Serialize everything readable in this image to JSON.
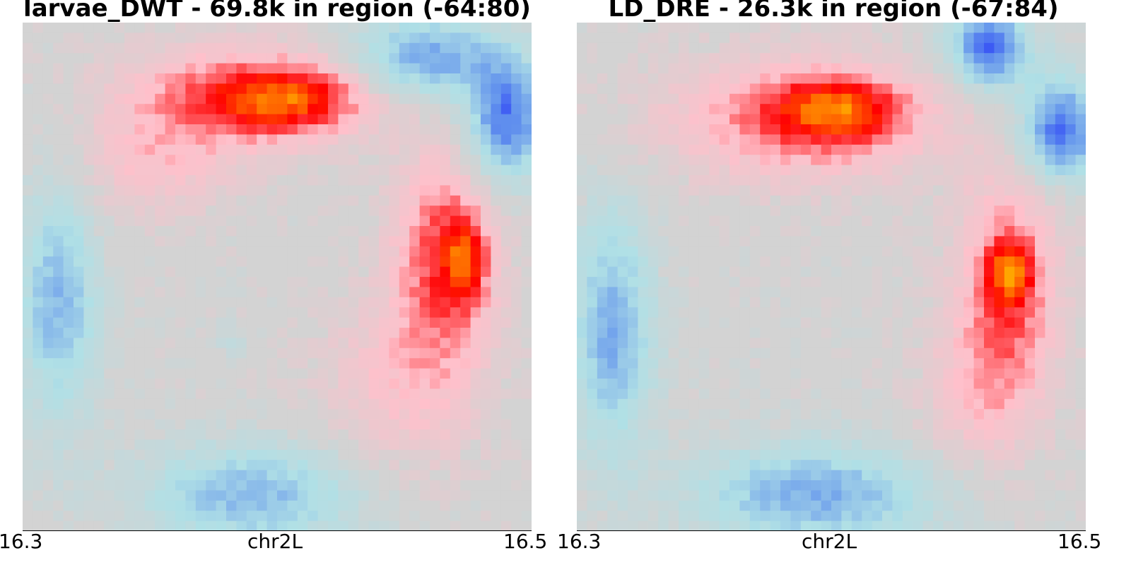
{
  "panels": [
    {
      "title": "larvae_DWT - 69.8k in region (-64:80)",
      "xticks": [
        "16.3",
        "chr2L",
        "16.5"
      ]
    },
    {
      "title": "LD_DRE - 26.3k in region (-67:84)",
      "xticks": [
        "16.3",
        "chr2L",
        "16.5"
      ]
    }
  ],
  "chart_data": [
    {
      "type": "heatmap",
      "title": "larvae_DWT - 69.8k in region (-64:80)",
      "xlabel": "chr2L",
      "ticks": [
        "16.3",
        "chr2L",
        "16.5"
      ],
      "colormap": [
        "#0000ff",
        "#6495ed",
        "#b0e0e6",
        "#d3d3d3",
        "#ffc0cb",
        "#ff0000",
        "#ffa500"
      ],
      "value_range": [
        -1,
        1
      ],
      "grid_size": 50,
      "blobs": [
        {
          "r": 7,
          "c": 21,
          "rr": 5,
          "rc": 12,
          "amp": 0.55
        },
        {
          "r": 7,
          "c": 26,
          "rr": 3,
          "rc": 7,
          "amp": 0.45
        },
        {
          "r": 22,
          "c": 41,
          "rr": 10,
          "rc": 5,
          "amp": 0.55
        },
        {
          "r": 23,
          "c": 43,
          "rr": 4,
          "rc": 2,
          "amp": 0.45
        },
        {
          "r": 14,
          "c": 12,
          "rr": 5,
          "rc": 8,
          "amp": 0.25
        },
        {
          "r": 35,
          "c": 37,
          "rr": 9,
          "rc": 8,
          "amp": 0.28
        },
        {
          "r": 3,
          "c": 39,
          "rr": 4,
          "rc": 7,
          "amp": -0.6
        },
        {
          "r": 9,
          "c": 47,
          "rr": 6,
          "rc": 4,
          "amp": -0.75
        },
        {
          "r": 27,
          "c": 3,
          "rr": 12,
          "rc": 4,
          "amp": -0.5
        },
        {
          "r": 46,
          "c": 22,
          "rr": 5,
          "rc": 11,
          "amp": -0.5
        },
        {
          "r": 31,
          "c": 20,
          "rr": 2,
          "rc": 2,
          "amp": -0.12
        }
      ]
    },
    {
      "type": "heatmap",
      "title": "LD_DRE - 26.3k in region (-67:84)",
      "xlabel": "chr2L",
      "ticks": [
        "16.3",
        "chr2L",
        "16.5"
      ],
      "colormap": [
        "#0000ff",
        "#6495ed",
        "#b0e0e6",
        "#d3d3d3",
        "#ffc0cb",
        "#ff0000",
        "#ffa500"
      ],
      "value_range": [
        -1,
        1
      ],
      "grid_size": 50,
      "blobs": [
        {
          "r": 9,
          "c": 22,
          "rr": 6,
          "rc": 14,
          "amp": 0.5
        },
        {
          "r": 8,
          "c": 25,
          "rr": 3,
          "rc": 6,
          "amp": 0.5
        },
        {
          "r": 25,
          "c": 42,
          "rr": 11,
          "rc": 5,
          "amp": 0.5
        },
        {
          "r": 24,
          "c": 42,
          "rr": 3,
          "rc": 2,
          "amp": 0.5
        },
        {
          "r": 36,
          "c": 39,
          "rr": 8,
          "rc": 6,
          "amp": 0.25
        },
        {
          "r": 2,
          "c": 40,
          "rr": 4,
          "rc": 4,
          "amp": -0.8
        },
        {
          "r": 10,
          "c": 47,
          "rr": 5,
          "rc": 4,
          "amp": -0.8
        },
        {
          "r": 30,
          "c": 3,
          "rr": 12,
          "rc": 4,
          "amp": -0.55
        },
        {
          "r": 46,
          "c": 23,
          "rr": 5,
          "rc": 12,
          "amp": -0.55
        }
      ]
    }
  ]
}
